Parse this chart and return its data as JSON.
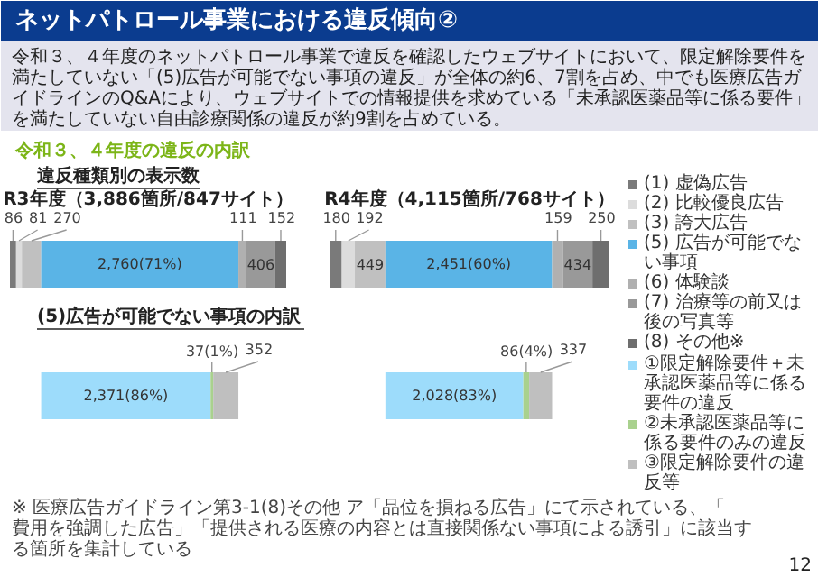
{
  "chart_data": [
    {
      "type": "other",
      "title": "ネットパトロール事業における違反傾向②",
      "subtitle": "令和３、４年度のネットパトロール事業で違反を確認したウェブサイトにおいて、限定解除要件を満たしていない「(5)広告が可能でない事項の違反」が全体の約6、7割を占め、中でも医療広告ガイドラインのQ&Aにより、ウェブサイトでの情報提供を求めている「未承認医薬品等に係る要件」を満たしていない自由診療関係の違反が約9割を占めている。",
      "annotations": [
        "令和３、４年度の違反の内訳",
        "違反種類別の表示数",
        "(5)広告が可能でない事項の内訳",
        "※ 医療広告ガイドライン第3-1(8)その他 ア「品位を損ねる広告」にて示されている、「費用を強調した広告」「提供される医療の内容とは直接関係ない事項による誘引」に該当する箇所を集計している",
        "12"
      ]
    },
    {
      "type": "bar",
      "orientation": "horizontal",
      "stacked": true,
      "title": "R3年度（3,886箇所/847サイト）",
      "categories": [
        null
      ],
      "series": [
        {
          "color": "#7a7a7a",
          "values": [
            86
          ],
          "value_labels": [
            "86"
          ]
        },
        {
          "color": "#dcdcdc",
          "values": [
            81
          ],
          "value_labels": [
            "81"
          ]
        },
        {
          "color": "#c0c0c0",
          "values": [
            270
          ],
          "value_labels": [
            "270"
          ]
        },
        {
          "color": "#5ab4e6",
          "values": [
            2760
          ],
          "value_labels": [
            "2,760(71%)"
          ]
        },
        {
          "color": "#b0b0b0",
          "values": [
            111
          ],
          "value_labels": [
            "111"
          ]
        },
        {
          "color": "#999999",
          "values": [
            406
          ],
          "value_labels": [
            "406"
          ]
        },
        {
          "color": "#6e6e6e",
          "values": [
            152
          ],
          "value_labels": [
            "152"
          ]
        }
      ]
    },
    {
      "type": "bar",
      "orientation": "horizontal",
      "stacked": true,
      "title": "R4年度（4,115箇所/768サイト）",
      "categories": [
        null
      ],
      "legend": "right",
      "series": [
        {
          "name": "(1) 虚偽広告",
          "color": "#7a7a7a",
          "values": [
            180
          ],
          "value_labels": [
            "180"
          ]
        },
        {
          "name": "(2) 比較優良広告",
          "color": "#dcdcdc",
          "values": [
            192
          ],
          "value_labels": [
            "192"
          ]
        },
        {
          "name": "(3) 誇大広告",
          "color": "#c0c0c0",
          "values": [
            449
          ],
          "value_labels": [
            "449"
          ]
        },
        {
          "name": "(5) 広告が可能でない事項",
          "color": "#5ab4e6",
          "values": [
            2451
          ],
          "value_labels": [
            "2,451(60%)"
          ]
        },
        {
          "name": "(6) 体験談",
          "color": "#b0b0b0",
          "values": [
            159
          ],
          "value_labels": [
            "159"
          ]
        },
        {
          "name": "(7) 治療等の前又は後の写真等",
          "color": "#999999",
          "values": [
            434
          ],
          "value_labels": [
            "434"
          ]
        },
        {
          "name": "(8) その他※",
          "color": "#6e6e6e",
          "values": [
            250
          ],
          "value_labels": [
            "250"
          ]
        }
      ]
    },
    {
      "type": "bar",
      "orientation": "horizontal",
      "stacked": true,
      "categories": [
        null
      ],
      "series": [
        {
          "color": "#9ddcfb",
          "values": [
            2371
          ],
          "value_labels": [
            "2,371(86%)"
          ]
        },
        {
          "color": "#a9d18e",
          "values": [
            37
          ],
          "value_labels": [
            "37(1%)"
          ]
        },
        {
          "color": "#bfbfbf",
          "values": [
            352
          ],
          "value_labels": [
            "352"
          ]
        }
      ]
    },
    {
      "type": "bar",
      "orientation": "horizontal",
      "stacked": true,
      "categories": [
        null
      ],
      "legend": "right",
      "series": [
        {
          "name": "①限定解除要件＋未承認医薬品等に係る要件の違反",
          "color": "#9ddcfb",
          "values": [
            2028
          ],
          "value_labels": [
            "2,028(83%)"
          ]
        },
        {
          "name": "②未承認医薬品等に係る要件のみの違反",
          "color": "#a9d18e",
          "values": [
            86
          ],
          "value_labels": [
            "86(4%)"
          ]
        },
        {
          "name": "③限定解除要件の違反等",
          "color": "#bfbfbf",
          "values": [
            337
          ],
          "value_labels": [
            "337"
          ]
        }
      ]
    }
  ]
}
